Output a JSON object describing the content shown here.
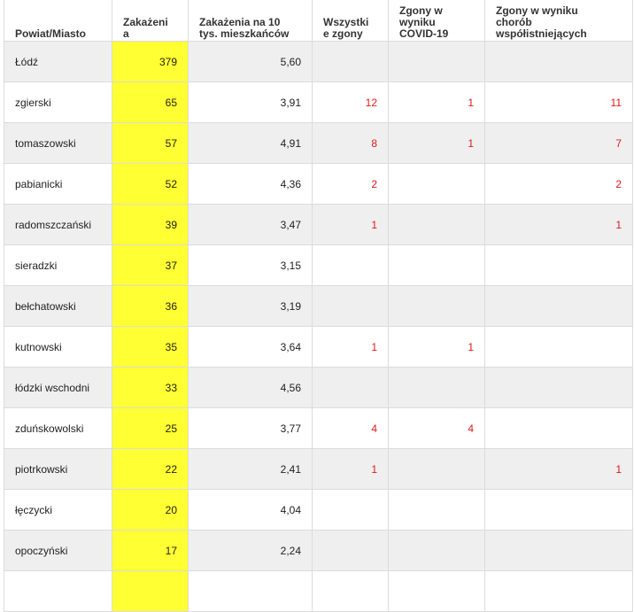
{
  "table": {
    "headers": [
      "Powiat/Miasto",
      "Zakażeni\na",
      "Zakażenia na 10\ntys. mieszkańców",
      "Wszystki\ne zgony",
      "Zgony w\nwyniku\nCOVID-19",
      "Zgony w wyniku\nchorób\nwspółistniejących"
    ],
    "rows": [
      [
        "Łódź",
        "379",
        "5,60",
        "",
        "",
        ""
      ],
      [
        "zgierski",
        "65",
        "3,91",
        "12",
        "1",
        "11"
      ],
      [
        "tomaszowski",
        "57",
        "4,91",
        "8",
        "1",
        "7"
      ],
      [
        "pabianicki",
        "52",
        "4,36",
        "2",
        "",
        "2"
      ],
      [
        "radomszczański",
        "39",
        "3,47",
        "1",
        "",
        "1"
      ],
      [
        "sieradzki",
        "37",
        "3,15",
        "",
        "",
        ""
      ],
      [
        "bełchatowski",
        "36",
        "3,19",
        "",
        "",
        ""
      ],
      [
        "kutnowski",
        "35",
        "3,64",
        "1",
        "1",
        ""
      ],
      [
        "łódzki wschodni",
        "33",
        "4,56",
        "",
        "",
        ""
      ],
      [
        "zduńskowolski",
        "25",
        "3,77",
        "4",
        "4",
        ""
      ],
      [
        "piotrkowski",
        "22",
        "2,41",
        "1",
        "",
        "1"
      ],
      [
        "łęczycki",
        "20",
        "4,04",
        "",
        "",
        ""
      ],
      [
        "opoczyński",
        "17",
        "2,24",
        "",
        "",
        ""
      ],
      [
        "",
        "",
        "",
        "",
        "",
        ""
      ]
    ]
  },
  "colors": {
    "highlight": "#ffff33",
    "deaths_text": "#e0191b",
    "alt_row": "#efefef"
  }
}
